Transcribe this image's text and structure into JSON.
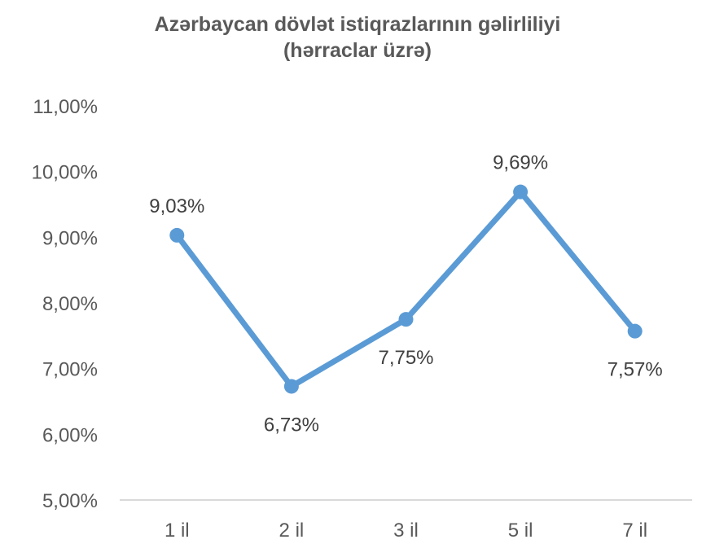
{
  "chart_data": {
    "type": "line",
    "title": "Azərbaycan dövlət istiqrazlarının gəlirliliyi",
    "subtitle": "(hərraclar üzrə)",
    "categories": [
      "1 il",
      "2 il",
      "3 il",
      "5 il",
      "7 il"
    ],
    "values": [
      9.03,
      6.73,
      7.75,
      9.69,
      7.57
    ],
    "data_labels": [
      "9,03%",
      "6,73%",
      "7,75%",
      "9,69%",
      "7,57%"
    ],
    "y_ticks": [
      "5,00%",
      "6,00%",
      "7,00%",
      "8,00%",
      "9,00%",
      "10,00%",
      "11,00%"
    ],
    "ylim": [
      5,
      11
    ],
    "grid": false,
    "legend": "none",
    "line_color": "#5b9bd5",
    "axis_color": "#d9d9d9"
  }
}
